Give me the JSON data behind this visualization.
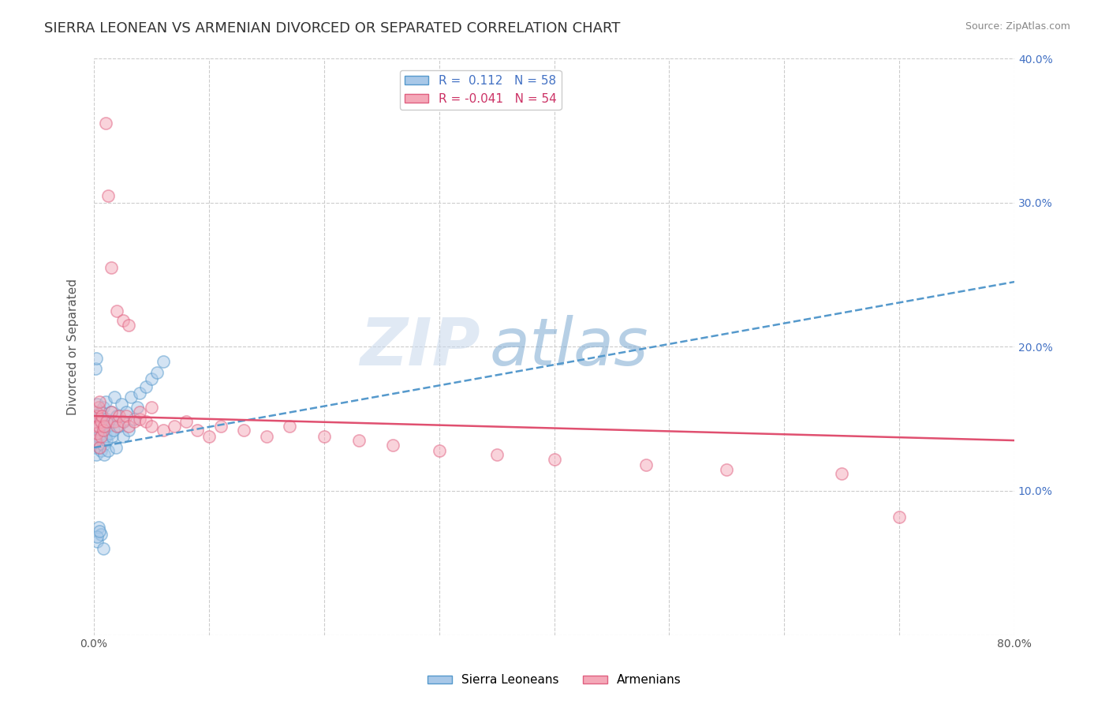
{
  "title": "SIERRA LEONEAN VS ARMENIAN DIVORCED OR SEPARATED CORRELATION CHART",
  "source_text": "Source: ZipAtlas.com",
  "ylabel": "Divorced or Separated",
  "xlabel": "",
  "watermark_zip": "ZIP",
  "watermark_atlas": "atlas",
  "legend_label_1": "Sierra Leoneans",
  "legend_label_2": "Armenians",
  "r1": 0.112,
  "n1": 58,
  "r2": -0.041,
  "n2": 54,
  "color_blue": "#a8c8e8",
  "color_pink": "#f4a8b8",
  "color_blue_edge": "#5599cc",
  "color_pink_edge": "#e06080",
  "color_blue_line": "#5599cc",
  "color_pink_line": "#e05070",
  "xlim": [
    0.0,
    0.8
  ],
  "ylim": [
    0.0,
    0.4
  ],
  "xticks": [
    0.0,
    0.1,
    0.2,
    0.3,
    0.4,
    0.5,
    0.6,
    0.7,
    0.8
  ],
  "yticks": [
    0.0,
    0.1,
    0.2,
    0.3,
    0.4
  ],
  "blue_scatter_x": [
    0.001,
    0.001,
    0.002,
    0.002,
    0.002,
    0.003,
    0.003,
    0.003,
    0.004,
    0.004,
    0.004,
    0.005,
    0.005,
    0.005,
    0.006,
    0.006,
    0.007,
    0.007,
    0.008,
    0.008,
    0.009,
    0.009,
    0.01,
    0.01,
    0.011,
    0.011,
    0.012,
    0.013,
    0.014,
    0.015,
    0.015,
    0.016,
    0.017,
    0.018,
    0.019,
    0.02,
    0.022,
    0.024,
    0.025,
    0.026,
    0.028,
    0.03,
    0.032,
    0.035,
    0.038,
    0.04,
    0.045,
    0.05,
    0.055,
    0.06,
    0.001,
    0.002,
    0.003,
    0.004,
    0.006,
    0.008,
    0.003,
    0.005
  ],
  "blue_scatter_y": [
    0.13,
    0.15,
    0.14,
    0.155,
    0.125,
    0.145,
    0.135,
    0.16,
    0.142,
    0.148,
    0.138,
    0.152,
    0.13,
    0.145,
    0.128,
    0.155,
    0.14,
    0.148,
    0.132,
    0.158,
    0.125,
    0.145,
    0.138,
    0.162,
    0.135,
    0.15,
    0.128,
    0.145,
    0.14,
    0.155,
    0.148,
    0.138,
    0.142,
    0.165,
    0.13,
    0.152,
    0.145,
    0.16,
    0.138,
    0.148,
    0.155,
    0.142,
    0.165,
    0.15,
    0.158,
    0.168,
    0.172,
    0.178,
    0.182,
    0.19,
    0.185,
    0.192,
    0.065,
    0.075,
    0.07,
    0.06,
    0.068,
    0.072
  ],
  "pink_scatter_x": [
    0.001,
    0.001,
    0.002,
    0.002,
    0.003,
    0.003,
    0.004,
    0.004,
    0.005,
    0.005,
    0.006,
    0.006,
    0.007,
    0.008,
    0.009,
    0.01,
    0.011,
    0.012,
    0.015,
    0.018,
    0.02,
    0.022,
    0.025,
    0.028,
    0.03,
    0.035,
    0.04,
    0.045,
    0.05,
    0.06,
    0.07,
    0.08,
    0.09,
    0.1,
    0.11,
    0.13,
    0.15,
    0.17,
    0.2,
    0.23,
    0.26,
    0.3,
    0.35,
    0.4,
    0.48,
    0.55,
    0.65,
    0.7,
    0.015,
    0.02,
    0.025,
    0.03,
    0.04,
    0.05
  ],
  "pink_scatter_y": [
    0.135,
    0.148,
    0.145,
    0.155,
    0.14,
    0.152,
    0.145,
    0.158,
    0.13,
    0.162,
    0.148,
    0.138,
    0.152,
    0.142,
    0.145,
    0.355,
    0.148,
    0.305,
    0.155,
    0.148,
    0.145,
    0.152,
    0.148,
    0.152,
    0.145,
    0.148,
    0.15,
    0.148,
    0.145,
    0.142,
    0.145,
    0.148,
    0.142,
    0.138,
    0.145,
    0.142,
    0.138,
    0.145,
    0.138,
    0.135,
    0.132,
    0.128,
    0.125,
    0.122,
    0.118,
    0.115,
    0.112,
    0.082,
    0.255,
    0.225,
    0.218,
    0.215,
    0.155,
    0.158
  ],
  "blue_trend_y_start": 0.13,
  "blue_trend_y_end": 0.245,
  "pink_trend_y_start": 0.152,
  "pink_trend_y_end": 0.135,
  "background_color": "#ffffff",
  "grid_color": "#cccccc",
  "title_fontsize": 13,
  "axis_fontsize": 11,
  "tick_fontsize": 10,
  "scatter_size": 120,
  "scatter_alpha": 0.5,
  "scatter_linewidth": 1.2
}
